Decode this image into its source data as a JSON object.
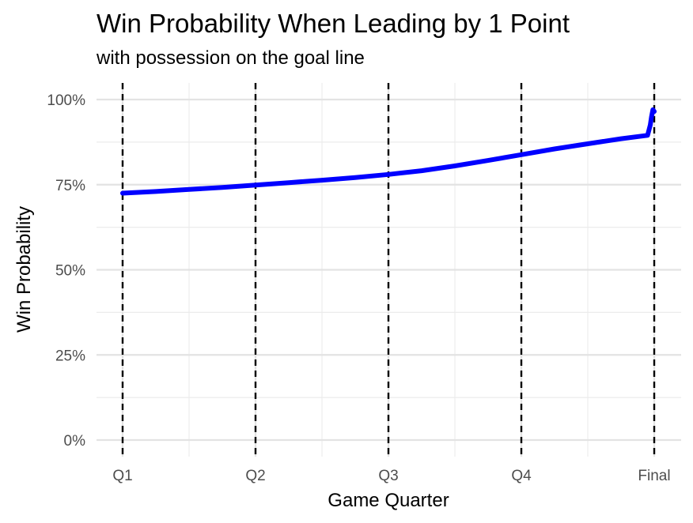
{
  "chart_data": {
    "type": "line",
    "title": "Win Probability When Leading by 1 Point",
    "subtitle": "with possession on the goal line",
    "xlabel": "Game Quarter",
    "ylabel": "Win Probability",
    "x_tick_labels": [
      "Q1",
      "Q2",
      "Q3",
      "Q4",
      "Final"
    ],
    "y_tick_labels": [
      "0%",
      "25%",
      "50%",
      "75%",
      "100%"
    ],
    "ylim": [
      0,
      1
    ],
    "xlim": [
      0,
      4
    ],
    "grid": true,
    "reference_lines": [
      0,
      1,
      2,
      3,
      4
    ],
    "series": [
      {
        "color": "#0000ff",
        "x": [
          0,
          0.25,
          0.5,
          0.75,
          1.0,
          1.25,
          1.5,
          1.75,
          2.0,
          2.25,
          2.5,
          2.75,
          3.0,
          3.25,
          3.5,
          3.75,
          3.95,
          3.97,
          3.98,
          3.99,
          4.0
        ],
        "y": [
          0.725,
          0.73,
          0.736,
          0.742,
          0.749,
          0.756,
          0.763,
          0.771,
          0.78,
          0.791,
          0.805,
          0.821,
          0.838,
          0.855,
          0.87,
          0.885,
          0.895,
          0.925,
          0.95,
          0.97,
          0.965
        ]
      }
    ]
  }
}
